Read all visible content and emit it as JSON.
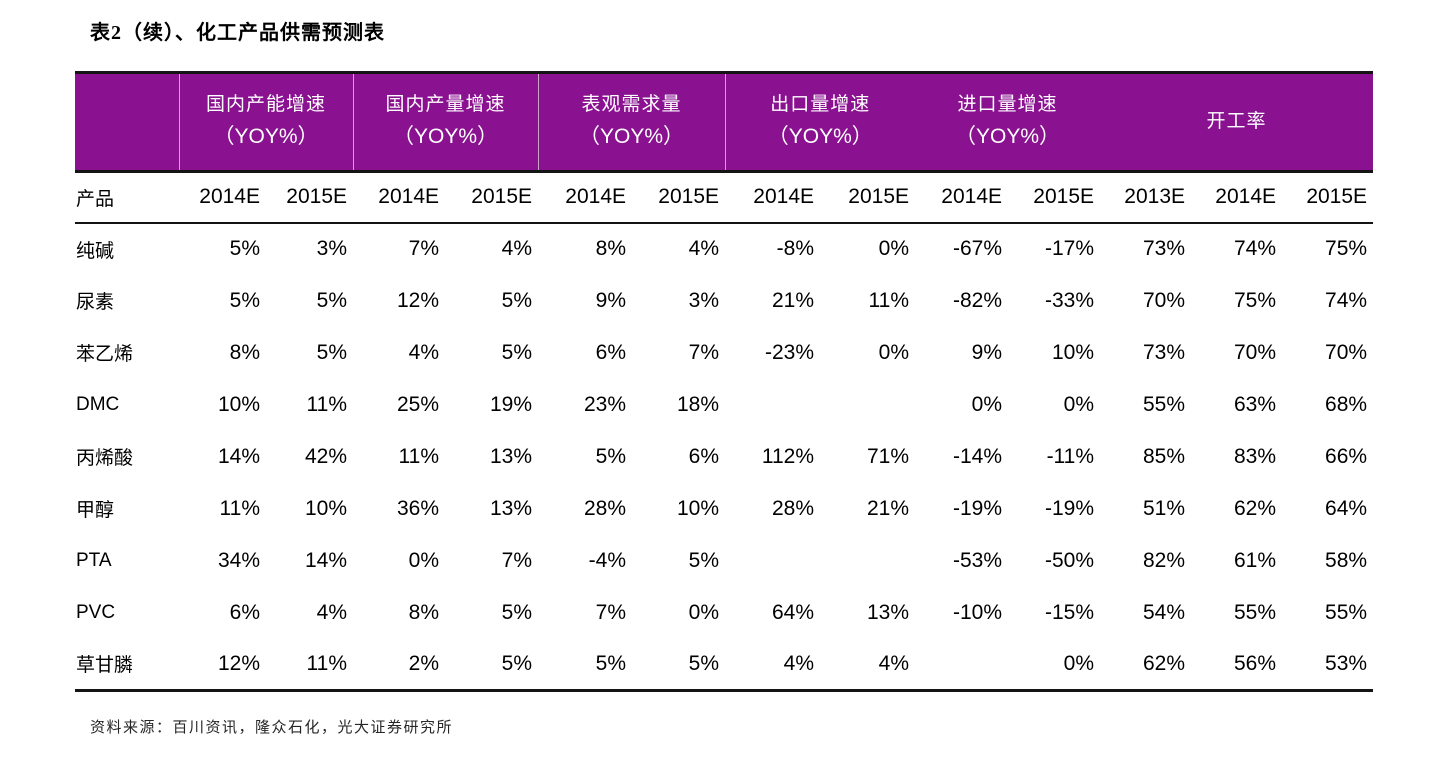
{
  "title": "表2（续）、化工产品供需预测表",
  "colors": {
    "header_bg": "#8A1190",
    "header_text": "#FFFFFF",
    "header_divider": "#C9A6CA",
    "rule_color": "#141414"
  },
  "table": {
    "group_headers": [
      {
        "line1": "国内产能增速",
        "line2": "（YOY%）",
        "span": 2
      },
      {
        "line1": "国内产量增速",
        "line2": "（YOY%）",
        "span": 2
      },
      {
        "line1": "表观需求量",
        "line2": "（YOY%）",
        "span": 2
      },
      {
        "line1": "出口量增速",
        "line2": "（YOY%）",
        "span": 2
      },
      {
        "line1": "进口量增速",
        "line2": "（YOY%）",
        "span": 2
      },
      {
        "line1": "开工率",
        "line2": "",
        "span": 3
      }
    ],
    "sub_headers": [
      "产品",
      "2014E",
      "2015E",
      "2014E",
      "2015E",
      "2014E",
      "2015E",
      "2014E",
      "2015E",
      "2014E",
      "2015E",
      "2013E",
      "2014E",
      "2015E"
    ],
    "rows": [
      {
        "product": "纯碱",
        "values": [
          "5%",
          "3%",
          "7%",
          "4%",
          "8%",
          "4%",
          "-8%",
          "0%",
          "-67%",
          "-17%",
          "73%",
          "74%",
          "75%"
        ]
      },
      {
        "product": "尿素",
        "values": [
          "5%",
          "5%",
          "12%",
          "5%",
          "9%",
          "3%",
          "21%",
          "11%",
          "-82%",
          "-33%",
          "70%",
          "75%",
          "74%"
        ]
      },
      {
        "product": "苯乙烯",
        "values": [
          "8%",
          "5%",
          "4%",
          "5%",
          "6%",
          "7%",
          "-23%",
          "0%",
          "9%",
          "10%",
          "73%",
          "70%",
          "70%"
        ]
      },
      {
        "product": "DMC",
        "values": [
          "10%",
          "11%",
          "25%",
          "19%",
          "23%",
          "18%",
          "",
          "",
          "0%",
          "0%",
          "55%",
          "63%",
          "68%"
        ]
      },
      {
        "product": "丙烯酸",
        "values": [
          "14%",
          "42%",
          "11%",
          "13%",
          "5%",
          "6%",
          "112%",
          "71%",
          "-14%",
          "-11%",
          "85%",
          "83%",
          "66%"
        ]
      },
      {
        "product": "甲醇",
        "values": [
          "11%",
          "10%",
          "36%",
          "13%",
          "28%",
          "10%",
          "28%",
          "21%",
          "-19%",
          "-19%",
          "51%",
          "62%",
          "64%"
        ]
      },
      {
        "product": "PTA",
        "values": [
          "34%",
          "14%",
          "0%",
          "7%",
          "-4%",
          "5%",
          "",
          "",
          "-53%",
          "-50%",
          "82%",
          "61%",
          "58%"
        ]
      },
      {
        "product": "PVC",
        "values": [
          "6%",
          "4%",
          "8%",
          "5%",
          "7%",
          "0%",
          "64%",
          "13%",
          "-10%",
          "-15%",
          "54%",
          "55%",
          "55%"
        ]
      },
      {
        "product": "草甘膦",
        "values": [
          "12%",
          "11%",
          "2%",
          "5%",
          "5%",
          "5%",
          "4%",
          "4%",
          "",
          "0%",
          "62%",
          "56%",
          "53%"
        ]
      }
    ]
  },
  "footer": {
    "source": "资料来源：百川资讯，隆众石化，光大证券研究所"
  }
}
